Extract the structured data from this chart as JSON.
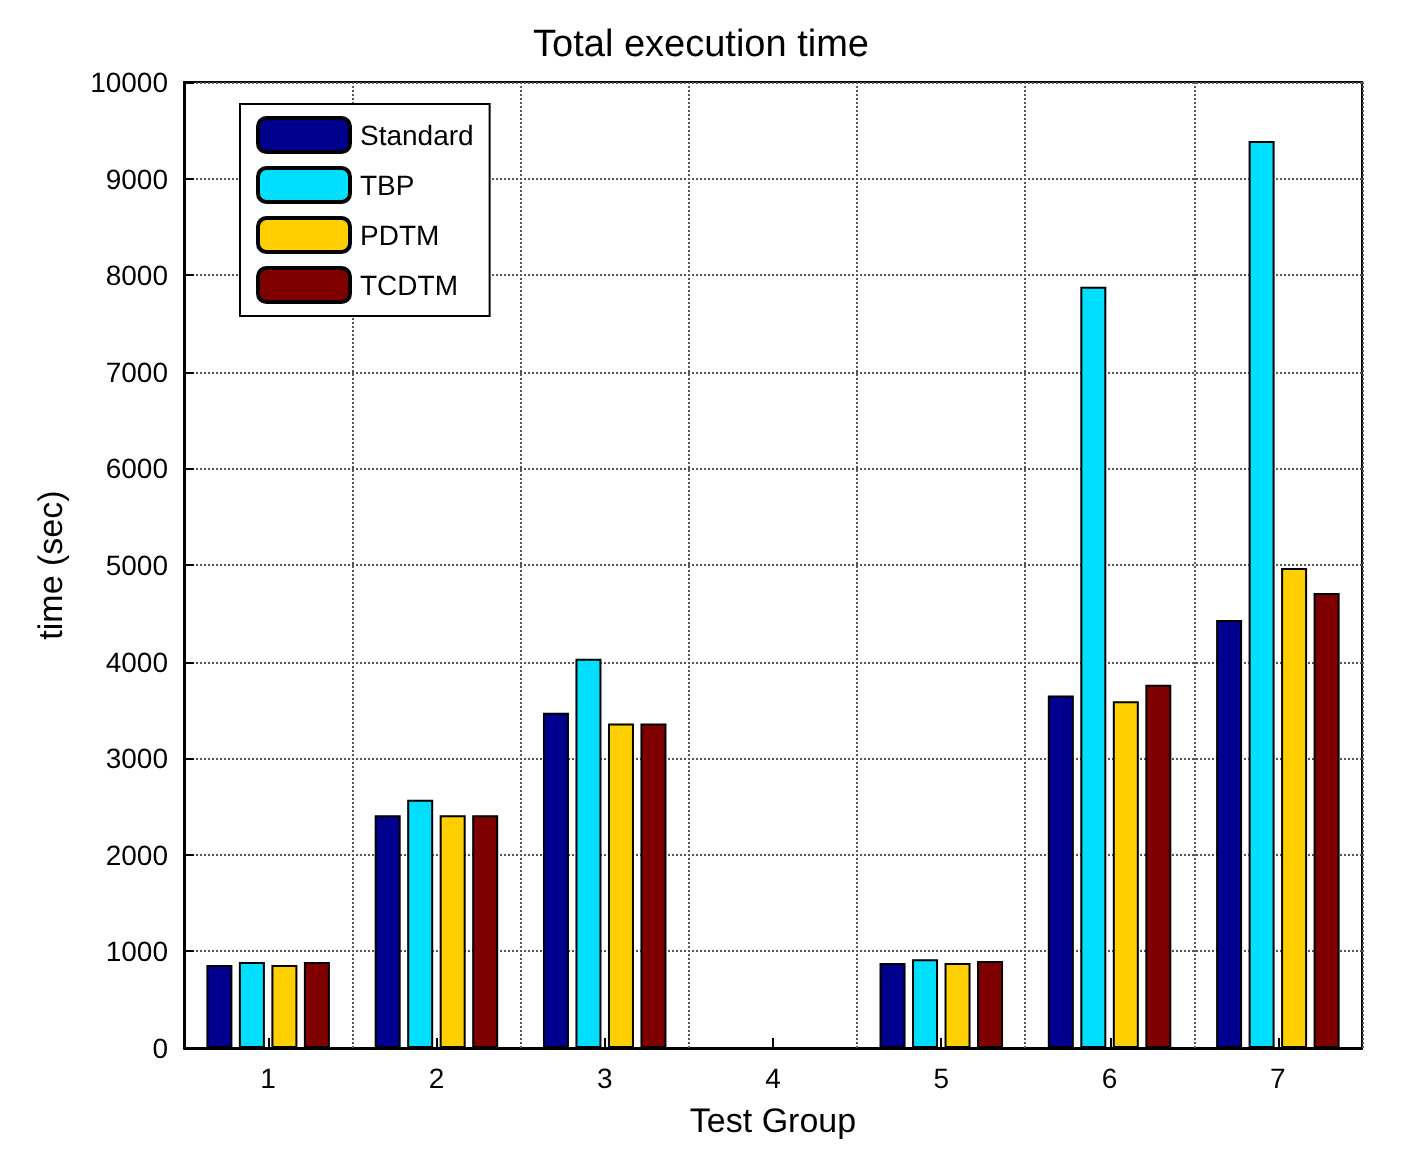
{
  "chart_data": {
    "type": "bar",
    "title": "Total execution time",
    "xlabel": "Test Group",
    "ylabel": "time (sec)",
    "categories": [
      "1",
      "2",
      "3",
      "4",
      "5",
      "6",
      "7"
    ],
    "series": [
      {
        "name": "Standard",
        "color": "#00008f",
        "values": [
          860,
          2410,
          3470,
          null,
          880,
          3650,
          4430
        ]
      },
      {
        "name": "TBP",
        "color": "#00dfff",
        "values": [
          890,
          2570,
          4030,
          null,
          920,
          7880,
          9390
        ]
      },
      {
        "name": "PDTM",
        "color": "#ffcf00",
        "values": [
          860,
          2410,
          3360,
          null,
          880,
          3590,
          4970
        ]
      },
      {
        "name": "TCDTM",
        "color": "#800000",
        "values": [
          890,
          2410,
          3360,
          null,
          900,
          3760,
          4710
        ]
      }
    ],
    "ylim": [
      0,
      10000
    ],
    "yticks": [
      0,
      1000,
      2000,
      3000,
      4000,
      5000,
      6000,
      7000,
      8000,
      9000,
      10000
    ],
    "grid": true,
    "legend": "top left"
  }
}
